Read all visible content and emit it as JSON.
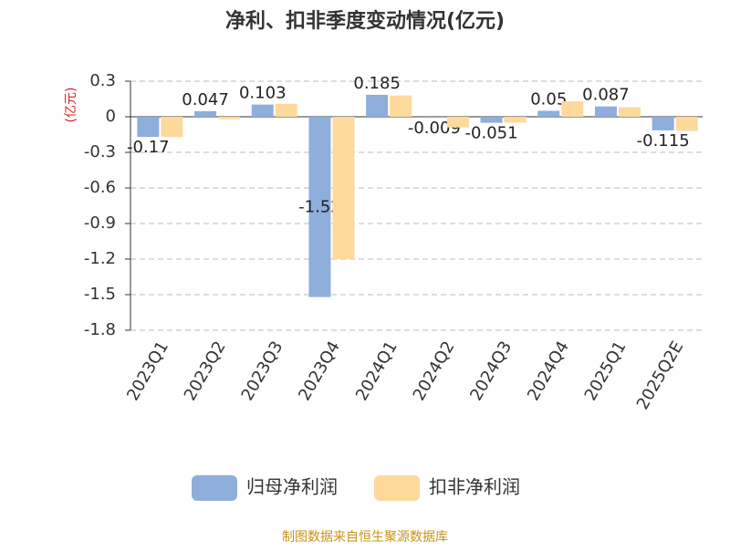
{
  "chart_data": {
    "type": "bar",
    "title": "净利、扣非季度变动情况(亿元)",
    "y_label": "(亿元)",
    "categories": [
      "2023Q1",
      "2023Q2",
      "2023Q3",
      "2023Q4",
      "2024Q1",
      "2024Q2",
      "2024Q3",
      "2024Q4",
      "2025Q1",
      "2025Q2E"
    ],
    "series": [
      {
        "name": "归母净利润",
        "color": "#8eaedc",
        "values": [
          -0.17,
          0.047,
          0.103,
          -1.52,
          0.185,
          -0.009,
          -0.051,
          0.05,
          0.087,
          -0.115
        ]
      },
      {
        "name": "扣非净利润",
        "color": "#fdd99b",
        "values": [
          -0.17,
          -0.02,
          0.11,
          -1.2,
          0.18,
          -0.09,
          -0.05,
          0.13,
          0.08,
          -0.12
        ]
      }
    ],
    "ylim": [
      -1.8,
      0.3
    ],
    "yticks": [
      0.3,
      0,
      -0.3,
      -0.6,
      -0.9,
      -1.2,
      -1.5,
      -1.8
    ],
    "grid": true,
    "source": "制图数据来自恒生聚源数据库"
  }
}
